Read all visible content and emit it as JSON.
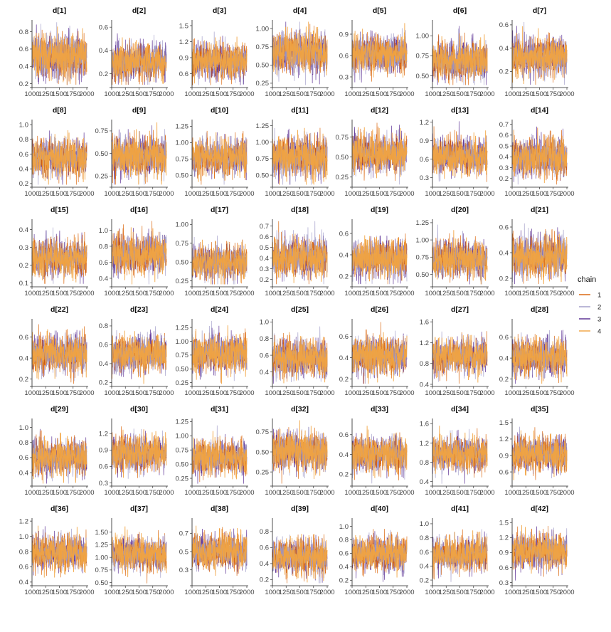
{
  "chart_data": {
    "type": "line",
    "facet": "grid",
    "x_ticks": [
      "1000",
      "1250",
      "1500",
      "1750",
      "2000"
    ],
    "xlim": [
      1000,
      2000
    ],
    "legend": {
      "title": "chain",
      "position": "right",
      "entries": [
        {
          "label": "1",
          "color": "#d95f02"
        },
        {
          "label": "2",
          "color": "#9e9ac8"
        },
        {
          "label": "3",
          "color": "#54278f"
        },
        {
          "label": "4",
          "color": "#f1a340"
        }
      ]
    },
    "panels": [
      {
        "title": "d[1]",
        "ylim": [
          0.18,
          0.92
        ],
        "yticks": [
          "0.2",
          "0.4",
          "0.6",
          "0.8"
        ],
        "mean": 0.52,
        "sd": 0.12
      },
      {
        "title": "d[2]",
        "ylim": [
          0.1,
          0.65
        ],
        "yticks": [
          "0.2",
          "0.4",
          "0.6"
        ],
        "mean": 0.3,
        "sd": 0.08
      },
      {
        "title": "d[3]",
        "ylim": [
          0.38,
          1.58
        ],
        "yticks": [
          "0.6",
          "0.9",
          "1.2",
          "1.5"
        ],
        "mean": 0.85,
        "sd": 0.17
      },
      {
        "title": "d[4]",
        "ylim": [
          0.22,
          1.1
        ],
        "yticks": [
          "0.25",
          "0.50",
          "0.75",
          "1.00"
        ],
        "mean": 0.68,
        "sd": 0.14
      },
      {
        "title": "d[5]",
        "ylim": [
          0.18,
          1.08
        ],
        "yticks": [
          "0.3",
          "0.6",
          "0.9"
        ],
        "mean": 0.62,
        "sd": 0.13
      },
      {
        "title": "d[6]",
        "ylim": [
          0.38,
          1.18
        ],
        "yticks": [
          "0.50",
          "0.75",
          "1.00"
        ],
        "mean": 0.68,
        "sd": 0.12
      },
      {
        "title": "d[7]",
        "ylim": [
          0.08,
          0.63
        ],
        "yticks": [
          "0.2",
          "0.4",
          "0.6"
        ],
        "mean": 0.33,
        "sd": 0.08
      },
      {
        "title": "d[8]",
        "ylim": [
          0.18,
          1.05
        ],
        "yticks": [
          "0.2",
          "0.4",
          "0.6",
          "0.8",
          "1.0"
        ],
        "mean": 0.56,
        "sd": 0.13
      },
      {
        "title": "d[9]",
        "ylim": [
          0.15,
          0.86
        ],
        "yticks": [
          "0.25",
          "0.50",
          "0.75"
        ],
        "mean": 0.47,
        "sd": 0.11
      },
      {
        "title": "d[10]",
        "ylim": [
          0.35,
          1.33
        ],
        "yticks": [
          "0.50",
          "0.75",
          "1.00",
          "1.25"
        ],
        "mean": 0.78,
        "sd": 0.14
      },
      {
        "title": "d[11]",
        "ylim": [
          0.35,
          1.32
        ],
        "yticks": [
          "0.50",
          "0.75",
          "1.00",
          "1.25"
        ],
        "mean": 0.78,
        "sd": 0.15
      },
      {
        "title": "d[12]",
        "ylim": [
          0.15,
          0.95
        ],
        "yticks": [
          "0.25",
          "0.50",
          "0.75"
        ],
        "mean": 0.55,
        "sd": 0.12
      },
      {
        "title": "d[13]",
        "ylim": [
          0.18,
          1.22
        ],
        "yticks": [
          "0.3",
          "0.6",
          "0.9",
          "1.2"
        ],
        "mean": 0.65,
        "sd": 0.15
      },
      {
        "title": "d[14]",
        "ylim": [
          0.14,
          0.73
        ],
        "yticks": [
          "0.2",
          "0.3",
          "0.4",
          "0.5",
          "0.6",
          "0.7"
        ],
        "mean": 0.39,
        "sd": 0.09
      },
      {
        "title": "d[15]",
        "ylim": [
          0.09,
          0.45
        ],
        "yticks": [
          "0.1",
          "0.2",
          "0.3",
          "0.4"
        ],
        "mean": 0.24,
        "sd": 0.055
      },
      {
        "title": "d[16]",
        "ylim": [
          0.32,
          1.12
        ],
        "yticks": [
          "0.4",
          "0.6",
          "0.8",
          "1.0"
        ],
        "mean": 0.7,
        "sd": 0.12
      },
      {
        "title": "d[17]",
        "ylim": [
          0.2,
          1.05
        ],
        "yticks": [
          "0.25",
          "0.50",
          "0.75",
          "1.00"
        ],
        "mean": 0.5,
        "sd": 0.11
      },
      {
        "title": "d[18]",
        "ylim": [
          0.15,
          0.75
        ],
        "yticks": [
          "0.2",
          "0.3",
          "0.4",
          "0.5",
          "0.6",
          "0.7"
        ],
        "mean": 0.41,
        "sd": 0.09
      },
      {
        "title": "d[19]",
        "ylim": [
          0.12,
          0.72
        ],
        "yticks": [
          "0.2",
          "0.4",
          "0.6"
        ],
        "mean": 0.36,
        "sd": 0.09
      },
      {
        "title": "d[20]",
        "ylim": [
          0.35,
          1.28
        ],
        "yticks": [
          "0.50",
          "0.75",
          "1.00",
          "1.25"
        ],
        "mean": 0.72,
        "sd": 0.13
      },
      {
        "title": "d[21]",
        "ylim": [
          0.15,
          0.65
        ],
        "yticks": [
          "0.2",
          "0.4",
          "0.6"
        ],
        "mean": 0.37,
        "sd": 0.08
      },
      {
        "title": "d[22]",
        "ylim": [
          0.15,
          0.76
        ],
        "yticks": [
          "0.2",
          "0.4",
          "0.6"
        ],
        "mean": 0.44,
        "sd": 0.09
      },
      {
        "title": "d[23]",
        "ylim": [
          0.18,
          0.86
        ],
        "yticks": [
          "0.2",
          "0.4",
          "0.6",
          "0.8"
        ],
        "mean": 0.5,
        "sd": 0.1
      },
      {
        "title": "d[24]",
        "ylim": [
          0.22,
          1.38
        ],
        "yticks": [
          "0.25",
          "0.50",
          "0.75",
          "1.00",
          "1.25"
        ],
        "mean": 0.78,
        "sd": 0.17
      },
      {
        "title": "d[25]",
        "ylim": [
          0.25,
          1.02
        ],
        "yticks": [
          "0.4",
          "0.6",
          "0.8",
          "1.0"
        ],
        "mean": 0.57,
        "sd": 0.11
      },
      {
        "title": "d[26]",
        "ylim": [
          0.15,
          0.75
        ],
        "yticks": [
          "0.2",
          "0.4",
          "0.6"
        ],
        "mean": 0.42,
        "sd": 0.09
      },
      {
        "title": "d[27]",
        "ylim": [
          0.4,
          1.63
        ],
        "yticks": [
          "0.4",
          "0.8",
          "1.2",
          "1.6"
        ],
        "mean": 0.95,
        "sd": 0.17
      },
      {
        "title": "d[28]",
        "ylim": [
          0.15,
          0.76
        ],
        "yticks": [
          "0.2",
          "0.4",
          "0.6"
        ],
        "mean": 0.41,
        "sd": 0.09
      },
      {
        "title": "d[29]",
        "ylim": [
          0.25,
          1.1
        ],
        "yticks": [
          "0.4",
          "0.6",
          "0.8",
          "1.0"
        ],
        "mean": 0.6,
        "sd": 0.12
      },
      {
        "title": "d[30]",
        "ylim": [
          0.28,
          1.45
        ],
        "yticks": [
          "0.3",
          "0.6",
          "0.9",
          "1.2"
        ],
        "mean": 0.83,
        "sd": 0.16
      },
      {
        "title": "d[31]",
        "ylim": [
          0.15,
          1.28
        ],
        "yticks": [
          "0.25",
          "0.50",
          "0.75",
          "1.00",
          "1.25"
        ],
        "mean": 0.62,
        "sd": 0.15
      },
      {
        "title": "d[32]",
        "ylim": [
          0.1,
          0.9
        ],
        "yticks": [
          "0.25",
          "0.50",
          "0.75"
        ],
        "mean": 0.5,
        "sd": 0.12
      },
      {
        "title": "d[33]",
        "ylim": [
          0.1,
          0.75
        ],
        "yticks": [
          "0.2",
          "0.4",
          "0.6"
        ],
        "mean": 0.4,
        "sd": 0.09
      },
      {
        "title": "d[34]",
        "ylim": [
          0.35,
          1.68
        ],
        "yticks": [
          "0.4",
          "0.8",
          "1.2",
          "1.6"
        ],
        "mean": 0.98,
        "sd": 0.18
      },
      {
        "title": "d[35]",
        "ylim": [
          0.38,
          1.55
        ],
        "yticks": [
          "0.6",
          "0.9",
          "1.2",
          "1.5"
        ],
        "mean": 0.93,
        "sd": 0.16
      },
      {
        "title": "d[36]",
        "ylim": [
          0.38,
          1.22
        ],
        "yticks": [
          "0.4",
          "0.6",
          "0.8",
          "1.0",
          "1.2"
        ],
        "mean": 0.79,
        "sd": 0.12
      },
      {
        "title": "d[37]",
        "ylim": [
          0.48,
          1.75
        ],
        "yticks": [
          "0.50",
          "0.75",
          "1.00",
          "1.25",
          "1.50"
        ],
        "mean": 1.07,
        "sd": 0.17
      },
      {
        "title": "d[38]",
        "ylim": [
          0.15,
          0.85
        ],
        "yticks": [
          "0.3",
          "0.5",
          "0.7"
        ],
        "mean": 0.5,
        "sd": 0.1
      },
      {
        "title": "d[39]",
        "ylim": [
          0.15,
          0.95
        ],
        "yticks": [
          "0.2",
          "0.4",
          "0.6",
          "0.8"
        ],
        "mean": 0.48,
        "sd": 0.11
      },
      {
        "title": "d[40]",
        "ylim": [
          0.15,
          1.1
        ],
        "yticks": [
          "0.2",
          "0.4",
          "0.6",
          "0.8",
          "1.0"
        ],
        "mean": 0.6,
        "sd": 0.13
      },
      {
        "title": "d[41]",
        "ylim": [
          0.15,
          1.06
        ],
        "yticks": [
          "0.2",
          "0.4",
          "0.6",
          "0.8",
          "1.0"
        ],
        "mean": 0.57,
        "sd": 0.12
      },
      {
        "title": "d[42]",
        "ylim": [
          0.28,
          1.56
        ],
        "yticks": [
          "0.3",
          "0.6",
          "0.9",
          "1.2",
          "1.5"
        ],
        "mean": 0.93,
        "sd": 0.17
      }
    ]
  }
}
